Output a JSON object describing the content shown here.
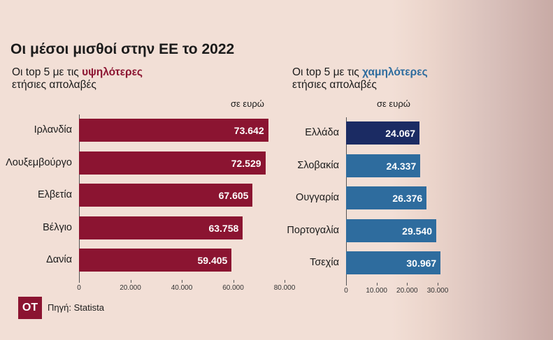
{
  "title": "Οι μέσοι μισθοί στην ΕΕ το 2022",
  "source": "Πηγή: Statista",
  "logo_text": "OT",
  "colors": {
    "background": "#f2dfd6",
    "left_bars": "#8b1431",
    "right_bars": "#2e6c9e",
    "right_first_bar": "#1b2b63",
    "left_highlight": "#8b1431",
    "right_highlight": "#2e6c9e"
  },
  "left": {
    "subtitle_pre": "Οι top 5 με τις ",
    "subtitle_highlight": "υψηλότερες",
    "subtitle_line2": "ετήσιες απολαβές",
    "unit": "σε ευρώ"
  },
  "right": {
    "subtitle_pre": "Οι top 5 με τις ",
    "subtitle_highlight": "χαμηλότερες",
    "subtitle_line2": "ετήσιες απολαβές",
    "unit": "σε ευρώ"
  },
  "chart_data": [
    {
      "type": "bar",
      "orientation": "horizontal",
      "categories": [
        "Ιρλανδία",
        "Λουξεμβούργο",
        "Ελβετία",
        "Βέλγιο",
        "Δανία"
      ],
      "values": [
        73642,
        72529,
        67605,
        63758,
        59405
      ],
      "value_labels": [
        "73.642",
        "72.529",
        "67.605",
        "63.758",
        "59.405"
      ],
      "xlim": [
        0,
        80000
      ],
      "xticks": [
        0,
        20000,
        40000,
        60000,
        80000
      ],
      "xtick_labels": [
        "0",
        "20.000",
        "40.000",
        "60.000",
        "80.000"
      ]
    },
    {
      "type": "bar",
      "orientation": "horizontal",
      "categories": [
        "Ελλάδα",
        "Σλοβακία",
        "Ουγγαρία",
        "Πορτογαλία",
        "Τσεχία"
      ],
      "values": [
        24067,
        24337,
        26376,
        29540,
        30967
      ],
      "value_labels": [
        "24.067",
        "24.337",
        "26.376",
        "29.540",
        "30.967"
      ],
      "xlim": [
        0,
        30000
      ],
      "xticks": [
        0,
        10000,
        20000,
        30000
      ],
      "xtick_labels": [
        "0",
        "10.000",
        "20.000",
        "30.000"
      ]
    }
  ]
}
